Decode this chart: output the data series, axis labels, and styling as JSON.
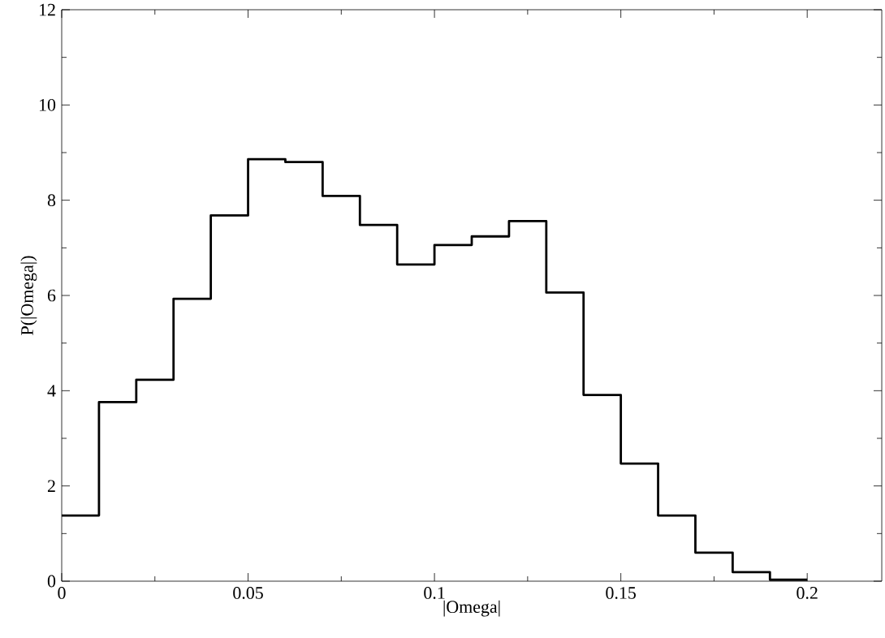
{
  "chart_data": {
    "type": "histogram",
    "xlabel": "|Omega|",
    "ylabel": "P(|Omega|)",
    "bins": [
      0,
      0.01,
      0.02,
      0.03,
      0.04,
      0.05,
      0.06,
      0.07,
      0.08,
      0.09,
      0.1,
      0.11,
      0.12,
      0.13,
      0.14,
      0.15,
      0.16,
      0.17,
      0.18,
      0.19,
      0.2
    ],
    "values": [
      1.38,
      3.76,
      4.23,
      5.93,
      7.68,
      8.86,
      8.8,
      8.09,
      7.48,
      6.65,
      7.06,
      7.24,
      7.56,
      6.06,
      3.91,
      2.47,
      1.38,
      0.6,
      0.19,
      0.03
    ],
    "color": "#000000",
    "xlim": [
      0,
      0.22
    ],
    "ylim": [
      0,
      12
    ],
    "xticks": [
      0,
      0.05,
      0.1,
      0.15,
      0.2
    ],
    "yticks": [
      0,
      2,
      4,
      6,
      8,
      10,
      12
    ]
  }
}
